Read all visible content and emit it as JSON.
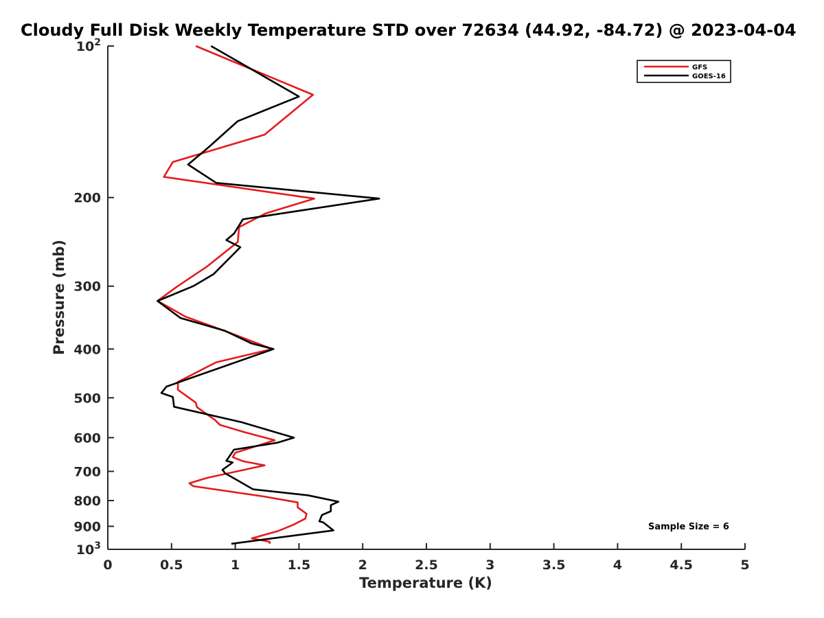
{
  "chart_data": {
    "type": "line",
    "title": "Cloudy Full Disk Weekly Temperature STD over 72634 (44.92, -84.72) @ 2023-04-04",
    "xlabel": "Temperature (K)",
    "ylabel": "Pressure (mb)",
    "xlim": [
      0,
      5
    ],
    "ylim": [
      100,
      1000
    ],
    "yscale": "log",
    "y_reversed": true,
    "x_ticks": [
      "0",
      "0.5",
      "1",
      "1.5",
      "2",
      "2.5",
      "3",
      "3.5",
      "4",
      "4.5",
      "5"
    ],
    "y_ticks": [
      {
        "value": 100,
        "base": "10",
        "exp": "2"
      },
      {
        "value": 200,
        "label": "200"
      },
      {
        "value": 300,
        "label": "300"
      },
      {
        "value": 400,
        "label": "400"
      },
      {
        "value": 500,
        "label": "500"
      },
      {
        "value": 600,
        "label": "600"
      },
      {
        "value": 700,
        "label": "700"
      },
      {
        "value": 800,
        "label": "800"
      },
      {
        "value": 900,
        "label": "900"
      },
      {
        "value": 1000,
        "base": "10",
        "exp": "3"
      }
    ],
    "grid": false,
    "legend_position": "top-right",
    "series": [
      {
        "name": "GFS",
        "color": "#e41a1c",
        "points": [
          [
            0.69,
            100
          ],
          [
            1.61,
            125
          ],
          [
            1.23,
            150
          ],
          [
            0.51,
            170
          ],
          [
            0.44,
            182
          ],
          [
            1.62,
            201
          ],
          [
            1.24,
            215
          ],
          [
            1.03,
            229
          ],
          [
            1.02,
            245
          ],
          [
            0.78,
            274
          ],
          [
            0.54,
            301
          ],
          [
            0.39,
            321
          ],
          [
            0.61,
            345
          ],
          [
            0.94,
            370
          ],
          [
            1.29,
            400
          ],
          [
            0.85,
            425
          ],
          [
            0.55,
            465
          ],
          [
            0.55,
            482
          ],
          [
            0.69,
            511
          ],
          [
            0.7,
            522
          ],
          [
            0.84,
            553
          ],
          [
            0.88,
            566
          ],
          [
            1.07,
            585
          ],
          [
            1.31,
            607
          ],
          [
            1.0,
            643
          ],
          [
            0.98,
            656
          ],
          [
            1.06,
            668
          ],
          [
            1.23,
            681
          ],
          [
            0.78,
            721
          ],
          [
            0.64,
            739
          ],
          [
            0.67,
            749
          ],
          [
            1.22,
            785
          ],
          [
            1.49,
            807
          ],
          [
            1.49,
            825
          ],
          [
            1.56,
            850
          ],
          [
            1.55,
            869
          ],
          [
            1.45,
            895
          ],
          [
            1.34,
            919
          ],
          [
            1.13,
            951
          ],
          [
            1.27,
            966
          ],
          [
            1.27,
            975
          ]
        ]
      },
      {
        "name": "GOES-16",
        "color": "#000000",
        "points": [
          [
            0.81,
            100
          ],
          [
            1.5,
            126
          ],
          [
            1.02,
            141
          ],
          [
            0.79,
            159
          ],
          [
            0.63,
            172
          ],
          [
            0.85,
            187
          ],
          [
            2.13,
            201
          ],
          [
            1.06,
            221
          ],
          [
            0.99,
            236
          ],
          [
            0.93,
            243
          ],
          [
            1.04,
            251
          ],
          [
            0.83,
            284
          ],
          [
            0.67,
            300
          ],
          [
            0.39,
            321
          ],
          [
            0.57,
            347
          ],
          [
            0.92,
            368
          ],
          [
            1.13,
            390
          ],
          [
            1.3,
            400
          ],
          [
            0.98,
            427
          ],
          [
            0.46,
            475
          ],
          [
            0.42,
            489
          ],
          [
            0.51,
            498
          ],
          [
            0.52,
            521
          ],
          [
            1.05,
            559
          ],
          [
            1.46,
            600
          ],
          [
            1.33,
            614
          ],
          [
            0.99,
            634
          ],
          [
            0.93,
            667
          ],
          [
            0.98,
            672
          ],
          [
            0.9,
            695
          ],
          [
            0.92,
            706
          ],
          [
            1.0,
            725
          ],
          [
            1.14,
            760
          ],
          [
            1.57,
            781
          ],
          [
            1.81,
            804
          ],
          [
            1.75,
            817
          ],
          [
            1.75,
            840
          ],
          [
            1.68,
            855
          ],
          [
            1.66,
            880
          ],
          [
            1.69,
            884
          ],
          [
            1.77,
            917
          ],
          [
            0.97,
            975
          ]
        ]
      }
    ],
    "annotation": "Sample Size = 6"
  }
}
